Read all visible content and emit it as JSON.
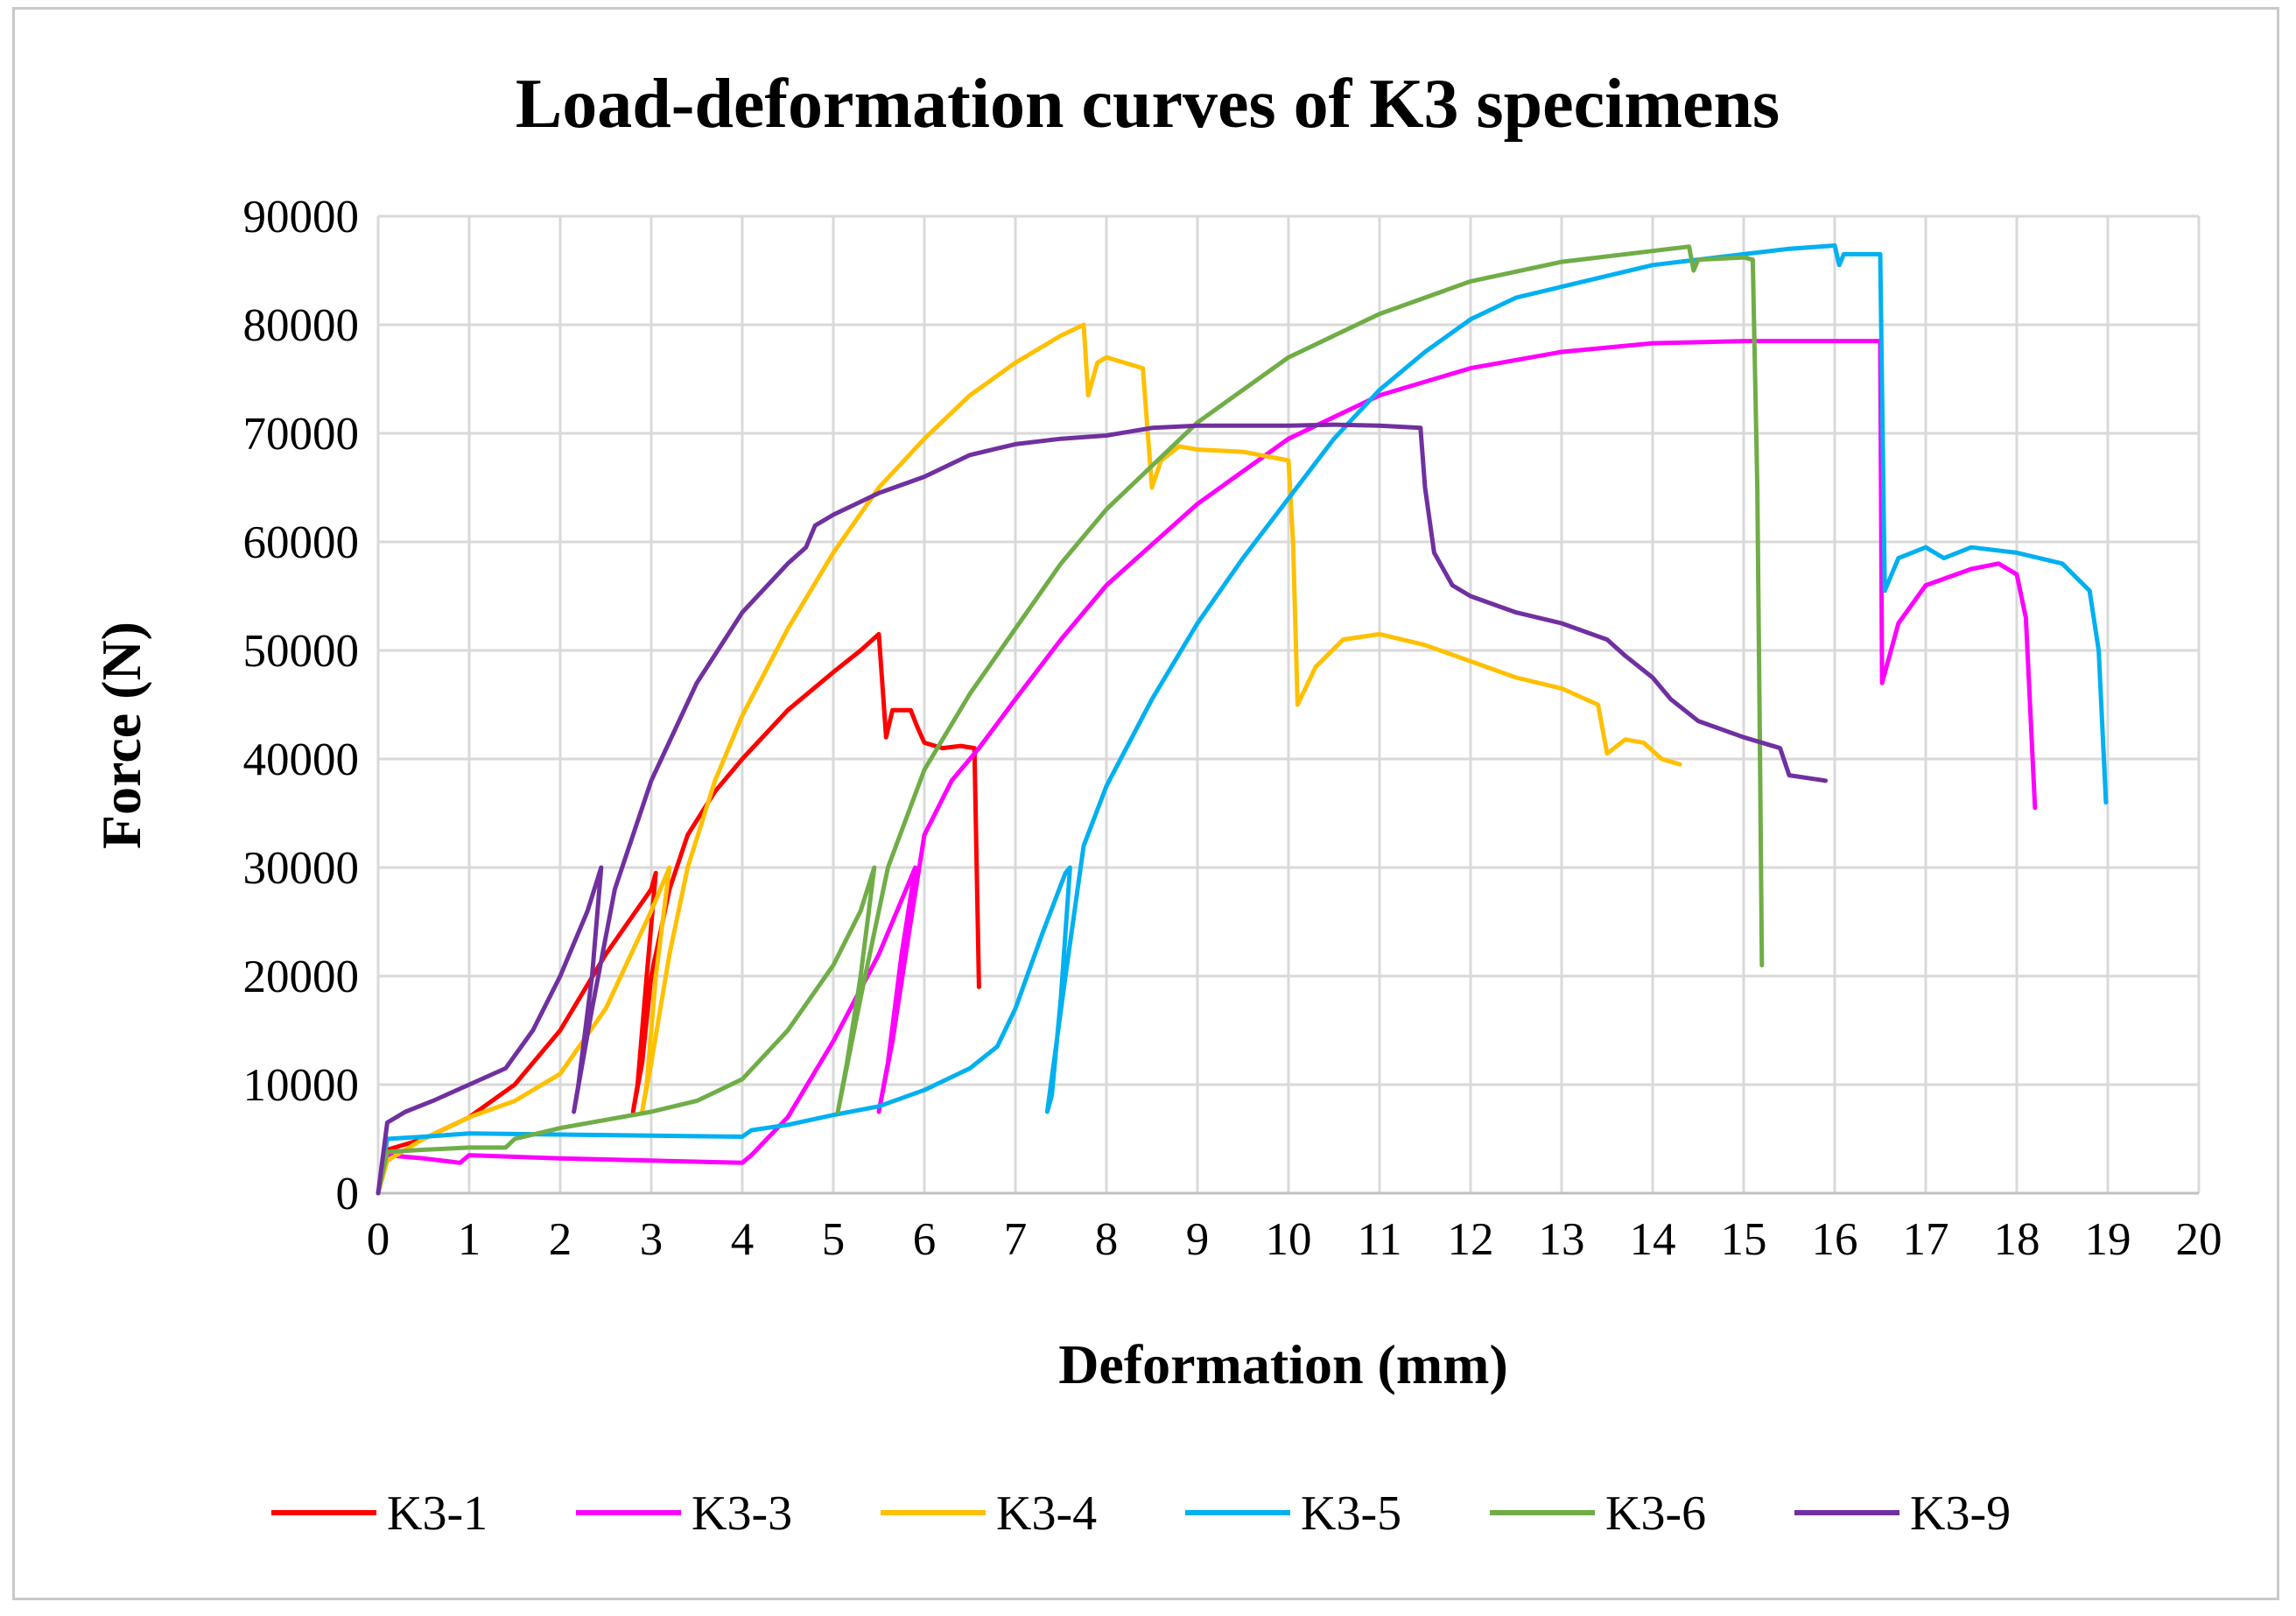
{
  "chart_data": {
    "type": "line",
    "title": "Load-deformation  curves of K3 specimens",
    "xlabel": "Deformation (mm)",
    "ylabel": "Force (N)",
    "xlim": [
      0,
      20
    ],
    "ylim": [
      0,
      90000
    ],
    "xticks": [
      0,
      1,
      2,
      3,
      4,
      5,
      6,
      7,
      8,
      9,
      10,
      11,
      12,
      13,
      14,
      15,
      16,
      17,
      18,
      19,
      20
    ],
    "yticks": [
      0,
      10000,
      20000,
      30000,
      40000,
      50000,
      60000,
      70000,
      80000,
      90000
    ],
    "grid": true,
    "legend_position": "bottom",
    "series": [
      {
        "name": "K3-1",
        "color": "#ff0000",
        "points": [
          [
            0,
            0
          ],
          [
            0.1,
            4000
          ],
          [
            0.5,
            5000
          ],
          [
            1,
            7000
          ],
          [
            1.5,
            10000
          ],
          [
            2,
            15000
          ],
          [
            2.5,
            22000
          ],
          [
            3,
            28000
          ],
          [
            3.05,
            29500
          ],
          [
            2.95,
            20000
          ],
          [
            2.85,
            10000
          ],
          [
            2.8,
            7500
          ],
          [
            2.9,
            12000
          ],
          [
            3.0,
            20000
          ],
          [
            3.2,
            28000
          ],
          [
            3.4,
            33000
          ],
          [
            3.7,
            37000
          ],
          [
            4,
            40000
          ],
          [
            4.5,
            44500
          ],
          [
            5,
            48000
          ],
          [
            5.3,
            50000
          ],
          [
            5.5,
            51500
          ],
          [
            5.58,
            42000
          ],
          [
            5.65,
            44500
          ],
          [
            5.85,
            44500
          ],
          [
            5.92,
            43000
          ],
          [
            6.0,
            41500
          ],
          [
            6.2,
            41000
          ],
          [
            6.4,
            41200
          ],
          [
            6.55,
            41000
          ],
          [
            6.6,
            19000
          ]
        ]
      },
      {
        "name": "K3-3",
        "color": "#ff00ff",
        "points": [
          [
            0,
            0
          ],
          [
            0.1,
            3500
          ],
          [
            0.5,
            3200
          ],
          [
            0.9,
            2800
          ],
          [
            1,
            3500
          ],
          [
            2,
            3200
          ],
          [
            3,
            3000
          ],
          [
            4,
            2800
          ],
          [
            4.1,
            3500
          ],
          [
            4.5,
            7000
          ],
          [
            5,
            14000
          ],
          [
            5.5,
            22000
          ],
          [
            5.8,
            28000
          ],
          [
            5.9,
            30000
          ],
          [
            5.75,
            22000
          ],
          [
            5.6,
            12000
          ],
          [
            5.5,
            7500
          ],
          [
            5.65,
            14000
          ],
          [
            5.85,
            25000
          ],
          [
            6,
            33000
          ],
          [
            6.3,
            38000
          ],
          [
            6.6,
            41000
          ],
          [
            7,
            45500
          ],
          [
            7.5,
            51000
          ],
          [
            8,
            56000
          ],
          [
            9,
            63500
          ],
          [
            10,
            69500
          ],
          [
            11,
            73500
          ],
          [
            12,
            76000
          ],
          [
            13,
            77500
          ],
          [
            14,
            78300
          ],
          [
            15,
            78500
          ],
          [
            16,
            78500
          ],
          [
            16.5,
            78500
          ],
          [
            16.52,
            47000
          ],
          [
            16.7,
            52500
          ],
          [
            17,
            56000
          ],
          [
            17.5,
            57500
          ],
          [
            17.8,
            58000
          ],
          [
            18,
            57000
          ],
          [
            18.1,
            53000
          ],
          [
            18.2,
            35500
          ]
        ]
      },
      {
        "name": "K3-4",
        "color": "#ffc000",
        "points": [
          [
            0,
            0
          ],
          [
            0.1,
            3000
          ],
          [
            0.5,
            5000
          ],
          [
            1,
            7000
          ],
          [
            1.5,
            8500
          ],
          [
            2,
            11000
          ],
          [
            2.5,
            17000
          ],
          [
            3,
            26000
          ],
          [
            3.2,
            30000
          ],
          [
            3.05,
            20000
          ],
          [
            2.95,
            10000
          ],
          [
            2.9,
            7500
          ],
          [
            3.0,
            12000
          ],
          [
            3.2,
            22000
          ],
          [
            3.4,
            30000
          ],
          [
            3.7,
            38000
          ],
          [
            4,
            44000
          ],
          [
            4.5,
            52000
          ],
          [
            5,
            59000
          ],
          [
            5.5,
            65000
          ],
          [
            6,
            69500
          ],
          [
            6.5,
            73500
          ],
          [
            7,
            76500
          ],
          [
            7.5,
            79000
          ],
          [
            7.75,
            80000
          ],
          [
            7.8,
            73500
          ],
          [
            7.9,
            76500
          ],
          [
            8.0,
            77000
          ],
          [
            8.2,
            76500
          ],
          [
            8.4,
            76000
          ],
          [
            8.5,
            65000
          ],
          [
            8.6,
            67500
          ],
          [
            8.8,
            68800
          ],
          [
            9,
            68500
          ],
          [
            9.5,
            68300
          ],
          [
            10,
            67500
          ],
          [
            10.05,
            60000
          ],
          [
            10.1,
            45000
          ],
          [
            10.3,
            48500
          ],
          [
            10.6,
            51000
          ],
          [
            11,
            51500
          ],
          [
            11.5,
            50500
          ],
          [
            12,
            49000
          ],
          [
            12.5,
            47500
          ],
          [
            13,
            46500
          ],
          [
            13.4,
            45000
          ],
          [
            13.5,
            40500
          ],
          [
            13.7,
            41800
          ],
          [
            13.9,
            41500
          ],
          [
            14.1,
            40000
          ],
          [
            14.3,
            39500
          ]
        ]
      },
      {
        "name": "K3-5",
        "color": "#00b0f0",
        "points": [
          [
            0,
            0
          ],
          [
            0.1,
            5000
          ],
          [
            0.5,
            5200
          ],
          [
            1,
            5500
          ],
          [
            2,
            5400
          ],
          [
            3,
            5300
          ],
          [
            4,
            5200
          ],
          [
            4.1,
            5800
          ],
          [
            4.5,
            6300
          ],
          [
            5,
            7200
          ],
          [
            5.5,
            8000
          ],
          [
            6,
            9500
          ],
          [
            6.5,
            11500
          ],
          [
            6.8,
            13500
          ],
          [
            7,
            17000
          ],
          [
            7.3,
            24000
          ],
          [
            7.55,
            29500
          ],
          [
            7.6,
            30000
          ],
          [
            7.5,
            18000
          ],
          [
            7.4,
            9000
          ],
          [
            7.35,
            7500
          ],
          [
            7.55,
            20000
          ],
          [
            7.75,
            32000
          ],
          [
            8,
            37500
          ],
          [
            8.5,
            45500
          ],
          [
            9,
            52500
          ],
          [
            9.5,
            58500
          ],
          [
            10,
            64000
          ],
          [
            10.5,
            69500
          ],
          [
            11,
            74000
          ],
          [
            11.5,
            77500
          ],
          [
            12,
            80500
          ],
          [
            12.5,
            82500
          ],
          [
            13,
            83500
          ],
          [
            13.5,
            84500
          ],
          [
            14,
            85500
          ],
          [
            14.5,
            86000
          ],
          [
            15,
            86500
          ],
          [
            15.5,
            87000
          ],
          [
            16,
            87300
          ],
          [
            16.05,
            85500
          ],
          [
            16.1,
            86500
          ],
          [
            16.5,
            86500
          ],
          [
            16.55,
            55500
          ],
          [
            16.7,
            58500
          ],
          [
            17,
            59500
          ],
          [
            17.2,
            58500
          ],
          [
            17.5,
            59500
          ],
          [
            18,
            59000
          ],
          [
            18.5,
            58000
          ],
          [
            18.8,
            55500
          ],
          [
            18.9,
            50000
          ],
          [
            18.98,
            36000
          ]
        ]
      },
      {
        "name": "K3-6",
        "color": "#70ad47",
        "points": [
          [
            0,
            0
          ],
          [
            0.1,
            3800
          ],
          [
            0.5,
            4000
          ],
          [
            1,
            4200
          ],
          [
            1.4,
            4200
          ],
          [
            1.5,
            5000
          ],
          [
            2,
            6000
          ],
          [
            3,
            7500
          ],
          [
            3.5,
            8500
          ],
          [
            4,
            10500
          ],
          [
            4.5,
            15000
          ],
          [
            5,
            21000
          ],
          [
            5.3,
            26000
          ],
          [
            5.45,
            30000
          ],
          [
            5.3,
            20000
          ],
          [
            5.15,
            12000
          ],
          [
            5.05,
            7500
          ],
          [
            5.3,
            18000
          ],
          [
            5.6,
            30000
          ],
          [
            6,
            39000
          ],
          [
            6.5,
            46000
          ],
          [
            7,
            52000
          ],
          [
            7.5,
            58000
          ],
          [
            8,
            63000
          ],
          [
            9,
            71000
          ],
          [
            10,
            77000
          ],
          [
            11,
            81000
          ],
          [
            12,
            84000
          ],
          [
            13,
            85800
          ],
          [
            14,
            86800
          ],
          [
            14.4,
            87200
          ],
          [
            14.45,
            85000
          ],
          [
            14.5,
            86000
          ],
          [
            15,
            86200
          ],
          [
            15.1,
            86000
          ],
          [
            15.15,
            65000
          ],
          [
            15.18,
            40000
          ],
          [
            15.2,
            21000
          ]
        ]
      },
      {
        "name": "K3-9",
        "color": "#7030a0",
        "points": [
          [
            0,
            0
          ],
          [
            0.1,
            6500
          ],
          [
            0.3,
            7500
          ],
          [
            0.6,
            8500
          ],
          [
            1,
            10000
          ],
          [
            1.4,
            11500
          ],
          [
            1.7,
            15000
          ],
          [
            2,
            20000
          ],
          [
            2.3,
            26000
          ],
          [
            2.45,
            30000
          ],
          [
            2.35,
            20000
          ],
          [
            2.2,
            10000
          ],
          [
            2.15,
            7500
          ],
          [
            2.35,
            17000
          ],
          [
            2.6,
            28000
          ],
          [
            3,
            38000
          ],
          [
            3.5,
            47000
          ],
          [
            4,
            53500
          ],
          [
            4.5,
            58000
          ],
          [
            4.7,
            59500
          ],
          [
            4.8,
            61500
          ],
          [
            5,
            62500
          ],
          [
            5.5,
            64500
          ],
          [
            6,
            66000
          ],
          [
            6.5,
            68000
          ],
          [
            7,
            69000
          ],
          [
            7.5,
            69500
          ],
          [
            8,
            69800
          ],
          [
            8.5,
            70500
          ],
          [
            9,
            70700
          ],
          [
            9.5,
            70700
          ],
          [
            10,
            70700
          ],
          [
            10.5,
            70800
          ],
          [
            11,
            70700
          ],
          [
            11.45,
            70500
          ],
          [
            11.5,
            65000
          ],
          [
            11.6,
            59000
          ],
          [
            11.8,
            56000
          ],
          [
            12,
            55000
          ],
          [
            12.5,
            53500
          ],
          [
            13,
            52500
          ],
          [
            13.5,
            51000
          ],
          [
            13.7,
            49500
          ],
          [
            14,
            47500
          ],
          [
            14.2,
            45500
          ],
          [
            14.5,
            43500
          ],
          [
            15,
            42000
          ],
          [
            15.4,
            41000
          ],
          [
            15.5,
            38500
          ],
          [
            15.9,
            38000
          ]
        ]
      }
    ]
  }
}
